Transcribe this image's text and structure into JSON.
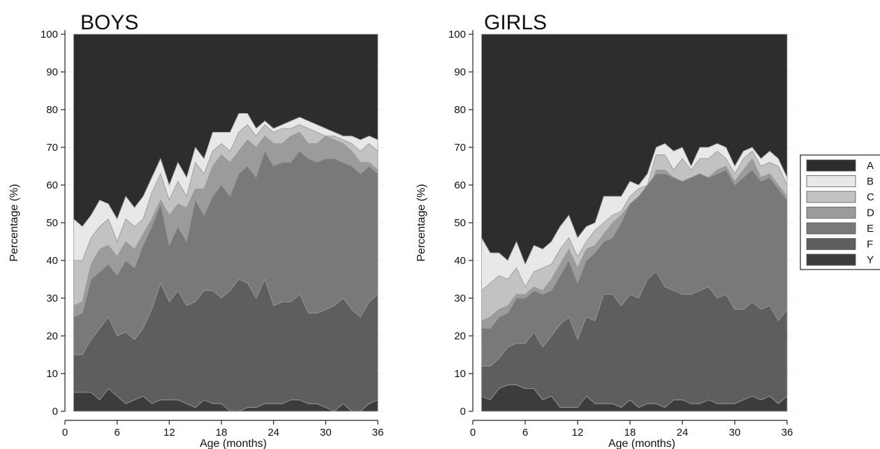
{
  "chart_data": [
    {
      "type": "area",
      "stacked": true,
      "title": "BOYS",
      "xlabel": "Age (months)",
      "ylabel": "Percentage (%)",
      "xlim": [
        0,
        36
      ],
      "ylim": [
        0,
        100
      ],
      "xticks": [
        0,
        6,
        12,
        18,
        24,
        30,
        36
      ],
      "yticks": [
        0,
        10,
        20,
        30,
        40,
        50,
        60,
        70,
        80,
        90,
        100
      ],
      "x": [
        1,
        2,
        3,
        4,
        5,
        6,
        7,
        8,
        9,
        10,
        11,
        12,
        13,
        14,
        15,
        16,
        17,
        18,
        19,
        20,
        21,
        22,
        23,
        24,
        25,
        26,
        27,
        28,
        29,
        30,
        31,
        32,
        33,
        34,
        35,
        36
      ],
      "series_order_bottom_to_top": [
        "Y",
        "F",
        "E",
        "D",
        "C",
        "B",
        "A"
      ],
      "cumulative_top": {
        "Y": [
          5,
          5,
          5,
          3,
          6,
          4,
          2,
          3,
          4,
          2,
          3,
          3,
          3,
          2,
          1,
          3,
          2,
          2,
          0,
          0,
          1,
          1,
          2,
          2,
          2,
          3,
          3,
          2,
          2,
          1,
          0,
          2,
          0,
          0,
          2,
          3
        ],
        "F": [
          15,
          15,
          19,
          22,
          25,
          20,
          21,
          19,
          22,
          27,
          34,
          29,
          32,
          28,
          29,
          32,
          32,
          30,
          32,
          35,
          34,
          30,
          35,
          28,
          29,
          29,
          31,
          26,
          26,
          27,
          28,
          30,
          27,
          25,
          29,
          31
        ],
        "E": [
          25,
          26,
          35,
          37,
          39,
          36,
          40,
          38,
          44,
          49,
          55,
          44,
          49,
          45,
          56,
          52,
          57,
          60,
          57,
          63,
          65,
          62,
          69,
          65,
          66,
          66,
          69,
          67,
          66,
          67,
          67,
          66,
          65,
          63,
          65,
          63
        ],
        "D": [
          28,
          29,
          39,
          43,
          44,
          41,
          45,
          43,
          47,
          51,
          56,
          52,
          55,
          54,
          59,
          59,
          65,
          68,
          66,
          69,
          72,
          70,
          73,
          71,
          71,
          73,
          74,
          71,
          71,
          73,
          72,
          71,
          69,
          66,
          66,
          64
        ],
        "C": [
          40,
          40,
          46,
          49,
          51,
          45,
          51,
          49,
          51,
          58,
          63,
          56,
          61,
          57,
          66,
          63,
          69,
          71,
          69,
          74,
          76,
          73,
          76,
          74,
          75,
          75,
          76,
          75,
          74,
          73,
          73,
          72,
          71,
          69,
          71,
          69
        ],
        "B": [
          51,
          49,
          52,
          56,
          55,
          51,
          57,
          54,
          57,
          62,
          67,
          60,
          66,
          62,
          70,
          67,
          74,
          74,
          74,
          79,
          79,
          75,
          77,
          75,
          76,
          77,
          78,
          77,
          76,
          75,
          74,
          73,
          73,
          72,
          73,
          72
        ],
        "A": [
          100,
          100,
          100,
          100,
          100,
          100,
          100,
          100,
          100,
          100,
          100,
          100,
          100,
          100,
          100,
          100,
          100,
          100,
          100,
          100,
          100,
          100,
          100,
          100,
          100,
          100,
          100,
          100,
          100,
          100,
          100,
          100,
          100,
          100,
          100,
          100
        ]
      }
    },
    {
      "type": "area",
      "stacked": true,
      "title": "GIRLS",
      "xlabel": "Age (months)",
      "ylabel": "Percentage (%)",
      "xlim": [
        0,
        36
      ],
      "ylim": [
        0,
        100
      ],
      "xticks": [
        0,
        6,
        12,
        18,
        24,
        30,
        36
      ],
      "yticks": [
        0,
        10,
        20,
        30,
        40,
        50,
        60,
        70,
        80,
        90,
        100
      ],
      "x": [
        1,
        2,
        3,
        4,
        5,
        6,
        7,
        8,
        9,
        10,
        11,
        12,
        13,
        14,
        15,
        16,
        17,
        18,
        19,
        20,
        21,
        22,
        23,
        24,
        25,
        26,
        27,
        28,
        29,
        30,
        31,
        32,
        33,
        34,
        35,
        36
      ],
      "series_order_bottom_to_top": [
        "Y",
        "F",
        "E",
        "D",
        "C",
        "B",
        "A"
      ],
      "cumulative_top": {
        "Y": [
          4,
          3,
          6,
          7,
          7,
          6,
          6,
          3,
          4,
          1,
          1,
          1,
          4,
          2,
          2,
          2,
          1,
          3,
          1,
          2,
          2,
          1,
          3,
          3,
          2,
          2,
          3,
          2,
          2,
          2,
          3,
          4,
          3,
          4,
          2,
          4
        ],
        "F": [
          12,
          12,
          14,
          17,
          18,
          18,
          21,
          17,
          20,
          23,
          25,
          19,
          25,
          24,
          31,
          31,
          28,
          31,
          30,
          35,
          37,
          33,
          32,
          31,
          31,
          32,
          33,
          30,
          31,
          27,
          27,
          29,
          27,
          28,
          24,
          27
        ],
        "E": [
          22,
          22,
          25,
          26,
          30,
          30,
          32,
          31,
          32,
          36,
          40,
          34,
          40,
          42,
          45,
          46,
          50,
          55,
          57,
          60,
          63,
          63,
          62,
          61,
          62,
          63,
          62,
          63,
          64,
          60,
          62,
          64,
          61,
          62,
          59,
          56
        ],
        "D": [
          24,
          25,
          27,
          28,
          31,
          31,
          33,
          32,
          35,
          39,
          43,
          38,
          43,
          44,
          47,
          50,
          52,
          55,
          56,
          58,
          64,
          64,
          62,
          61,
          62,
          63,
          62,
          64,
          65,
          61,
          64,
          67,
          62,
          63,
          60,
          57
        ],
        "C": [
          32,
          34,
          36,
          35,
          38,
          33,
          37,
          38,
          39,
          43,
          46,
          41,
          45,
          48,
          50,
          52,
          53,
          57,
          59,
          60,
          68,
          68,
          64,
          67,
          64,
          67,
          67,
          69,
          67,
          63,
          67,
          69,
          65,
          66,
          65,
          60
        ],
        "B": [
          46,
          42,
          42,
          40,
          45,
          39,
          44,
          43,
          45,
          49,
          52,
          46,
          49,
          50,
          57,
          57,
          57,
          61,
          60,
          63,
          70,
          71,
          69,
          70,
          65,
          70,
          70,
          71,
          70,
          65,
          69,
          70,
          67,
          69,
          67,
          62
        ],
        "A": [
          100,
          100,
          100,
          100,
          100,
          100,
          100,
          100,
          100,
          100,
          100,
          100,
          100,
          100,
          100,
          100,
          100,
          100,
          100,
          100,
          100,
          100,
          100,
          100,
          100,
          100,
          100,
          100,
          100,
          100,
          100,
          100,
          100,
          100,
          100,
          100
        ]
      }
    }
  ],
  "legend": {
    "placement": "right",
    "entries": [
      {
        "label": "A",
        "color": "#2d2d2d"
      },
      {
        "label": "B",
        "color": "#e8e8e8"
      },
      {
        "label": "C",
        "color": "#c2c2c2"
      },
      {
        "label": "D",
        "color": "#9b9b9b"
      },
      {
        "label": "E",
        "color": "#797979"
      },
      {
        "label": "F",
        "color": "#5e5e5e"
      },
      {
        "label": "Y",
        "color": "#3c3c3c"
      }
    ]
  }
}
